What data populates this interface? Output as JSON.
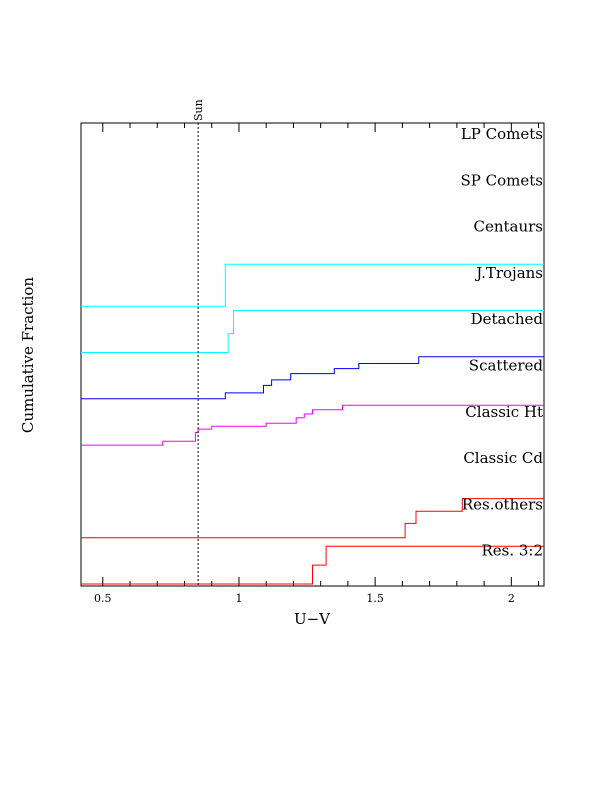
{
  "chart_data": {
    "type": "line",
    "subtype": "stacked cumulative step distributions (each panel normalized 0-1, offset vertically)",
    "xlabel": "U−V",
    "ylabel": "Cumulative Fraction",
    "xlim": [
      0.42,
      2.12
    ],
    "x_ticks": [
      {
        "value": 0.5,
        "label": "0.5"
      },
      {
        "value": 1.0,
        "label": "1"
      },
      {
        "value": 1.5,
        "label": "1.5"
      },
      {
        "value": 2.0,
        "label": "2"
      }
    ],
    "reference_line": {
      "x": 0.85,
      "label": "Sun",
      "style": "dotted"
    },
    "panel_labels": [
      "LP Comets",
      "SP Comets",
      "Centaurs",
      "J.Trojans",
      "Detached",
      "Scattered",
      "Classic Ht",
      "Classic Cd",
      "Res.others",
      "Res. 3:2"
    ],
    "series": [
      {
        "name": "J.Trojans",
        "color": "#00ffff",
        "panel_index": 3,
        "steps": [
          [
            0.42,
            0.0
          ],
          [
            0.95,
            1.0
          ],
          [
            2.12,
            1.0
          ]
        ]
      },
      {
        "name": "Detached",
        "color": "#00ffff",
        "panel_index": 4,
        "steps": [
          [
            0.42,
            0.0
          ],
          [
            0.96,
            0.45
          ],
          [
            0.98,
            1.0
          ],
          [
            2.12,
            1.0
          ]
        ]
      },
      {
        "name": "Scattered",
        "color": "#0000ff",
        "panel_index": 5,
        "steps": [
          [
            0.42,
            0.0
          ],
          [
            0.95,
            0.14
          ],
          [
            1.09,
            0.32
          ],
          [
            1.12,
            0.45
          ],
          [
            1.19,
            0.6
          ],
          [
            1.35,
            0.72
          ],
          [
            1.44,
            0.84
          ],
          [
            1.66,
            1.0
          ],
          [
            2.12,
            1.0
          ]
        ]
      },
      {
        "name": "Classic Ht",
        "color": "#ff00ff",
        "panel_index": 6,
        "steps": [
          [
            0.42,
            0.0
          ],
          [
            0.72,
            0.09
          ],
          [
            0.84,
            0.3
          ],
          [
            0.85,
            0.38
          ],
          [
            0.9,
            0.45
          ],
          [
            1.1,
            0.52
          ],
          [
            1.21,
            0.65
          ],
          [
            1.24,
            0.74
          ],
          [
            1.27,
            0.84
          ],
          [
            1.38,
            0.95
          ],
          [
            2.12,
            0.95
          ]
        ]
      },
      {
        "name": "Res.others",
        "color": "#ff0000",
        "panel_index": 8,
        "steps": [
          [
            0.42,
            0.0
          ],
          [
            1.61,
            0.34
          ],
          [
            1.65,
            0.63
          ],
          [
            1.82,
            0.93
          ],
          [
            2.12,
            0.93
          ]
        ]
      },
      {
        "name": "Res. 3:2",
        "color": "#ff0000",
        "panel_index": 9,
        "steps": [
          [
            0.42,
            0.0
          ],
          [
            1.27,
            0.45
          ],
          [
            1.32,
            0.9
          ],
          [
            2.12,
            0.9
          ]
        ]
      }
    ]
  }
}
